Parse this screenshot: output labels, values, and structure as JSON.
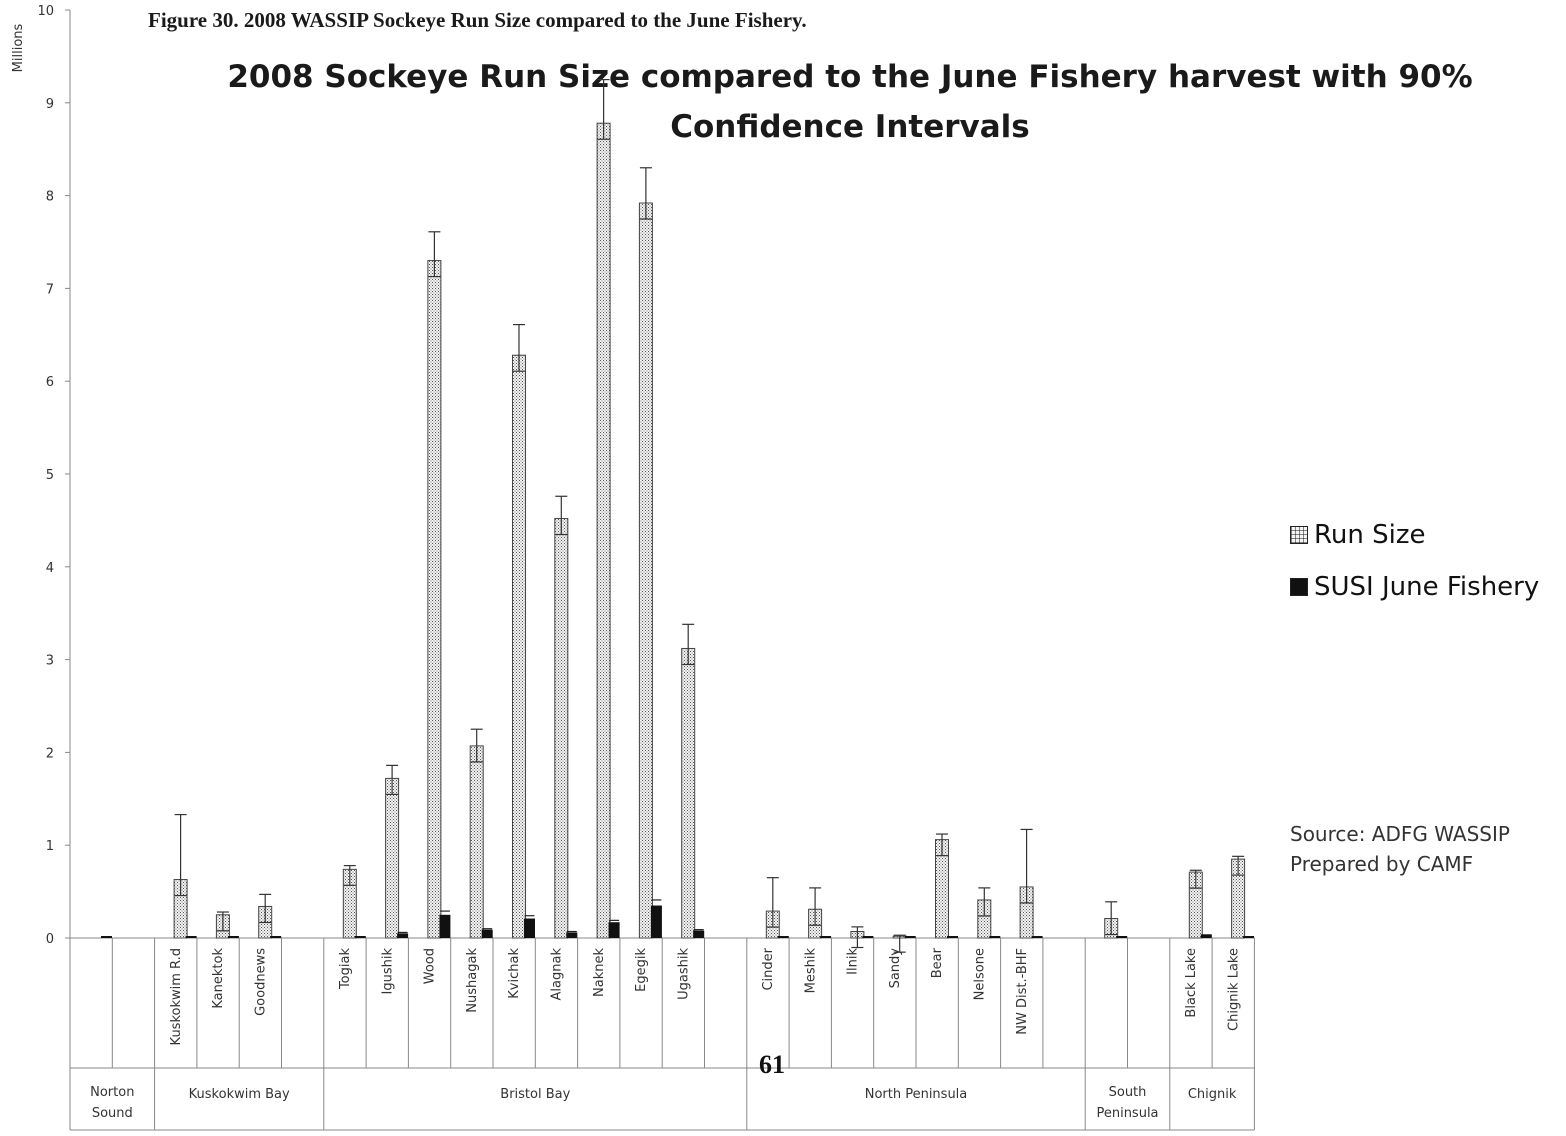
{
  "figure_caption": "Figure 30. 2008 WASSIP Sockeye Run Size compared to the June Fishery.",
  "page_number": "61",
  "source_lines": [
    "Source: ADFG WASSIP",
    "Prepared by CAMF"
  ],
  "colors": {
    "run_size": "#e6e6e6",
    "susi": "#111111",
    "axis": "#888888"
  },
  "chart_data": {
    "type": "bar",
    "title": "2008 Sockeye Run Size compared to the June Fishery harvest with 90% Confidence Intervals",
    "ylabel": "Millions",
    "xlabel": "",
    "ylim": [
      0,
      10
    ],
    "yticks": [
      0,
      1,
      2,
      3,
      4,
      5,
      6,
      7,
      8,
      9,
      10
    ],
    "legend_position": "right",
    "legend": [
      "Run Size",
      "SUSI June Fishery"
    ],
    "categories": [
      "",
      "",
      "Kuskokwim R.d",
      "Kanektok",
      "Goodnews",
      "",
      "Togiak",
      "Igushik",
      "Wood",
      "Nushagak",
      "Kvichak",
      "Alagnak",
      "Naknek",
      "Egegik",
      "Ugashik",
      "",
      "Cinder",
      "Meshik",
      "Ilnik",
      "Sandy",
      "Bear",
      "Nelsone",
      "NW Dist.-BHF",
      "",
      "",
      "",
      "Black Lake",
      "Chignik Lake"
    ],
    "groups": [
      {
        "name": "Norton Sound",
        "lines": [
          "Norton",
          "Sound"
        ],
        "start": 0,
        "end": 1
      },
      {
        "name": "Kuskokwim Bay",
        "lines": [
          "Kuskokwim Bay"
        ],
        "start": 2,
        "end": 5
      },
      {
        "name": "Bristol Bay",
        "lines": [
          "Bristol Bay"
        ],
        "start": 6,
        "end": 15
      },
      {
        "name": "North Peninsula",
        "lines": [
          "North Peninsula"
        ],
        "start": 16,
        "end": 23
      },
      {
        "name": "South Peninsula",
        "lines": [
          "South",
          "Peninsula"
        ],
        "start": 24,
        "end": 25
      },
      {
        "name": "Chignik",
        "lines": [
          "Chignik"
        ],
        "start": 26,
        "end": 27
      }
    ],
    "series": [
      {
        "name": "Run Size",
        "values": [
          0,
          0,
          0.63,
          0.25,
          0.34,
          0,
          0.74,
          1.72,
          7.3,
          2.07,
          6.28,
          4.52,
          8.78,
          7.92,
          3.12,
          0,
          0.29,
          0.31,
          0.07,
          0.02,
          1.06,
          0.41,
          0.55,
          0,
          0.21,
          0,
          0.71,
          0.85
        ],
        "error_upper": [
          0,
          0,
          1.33,
          0.28,
          0.47,
          0,
          0.78,
          1.86,
          7.61,
          2.25,
          6.61,
          4.76,
          9.25,
          8.3,
          3.38,
          0,
          0.65,
          0.54,
          0.12,
          0.03,
          1.12,
          0.54,
          1.17,
          0,
          0.39,
          0,
          0.73,
          0.88
        ]
      },
      {
        "name": "SUSI June Fishery",
        "values": [
          0.02,
          0,
          0.01,
          0.01,
          0.02,
          0,
          0.01,
          0.05,
          0.25,
          0.09,
          0.21,
          0.06,
          0.17,
          0.35,
          0.08,
          0,
          0.01,
          0.01,
          0.01,
          0.01,
          0.02,
          0.01,
          0.01,
          0,
          0.01,
          0,
          0.04,
          0.02
        ],
        "error_upper": [
          0.02,
          0,
          0.01,
          0.01,
          0.02,
          0,
          0.01,
          0.06,
          0.29,
          0.1,
          0.24,
          0.07,
          0.19,
          0.41,
          0.09,
          0,
          0.01,
          0.01,
          0.01,
          0.01,
          0.02,
          0.01,
          0.01,
          0,
          0.01,
          0,
          0.04,
          0.02
        ]
      }
    ]
  }
}
